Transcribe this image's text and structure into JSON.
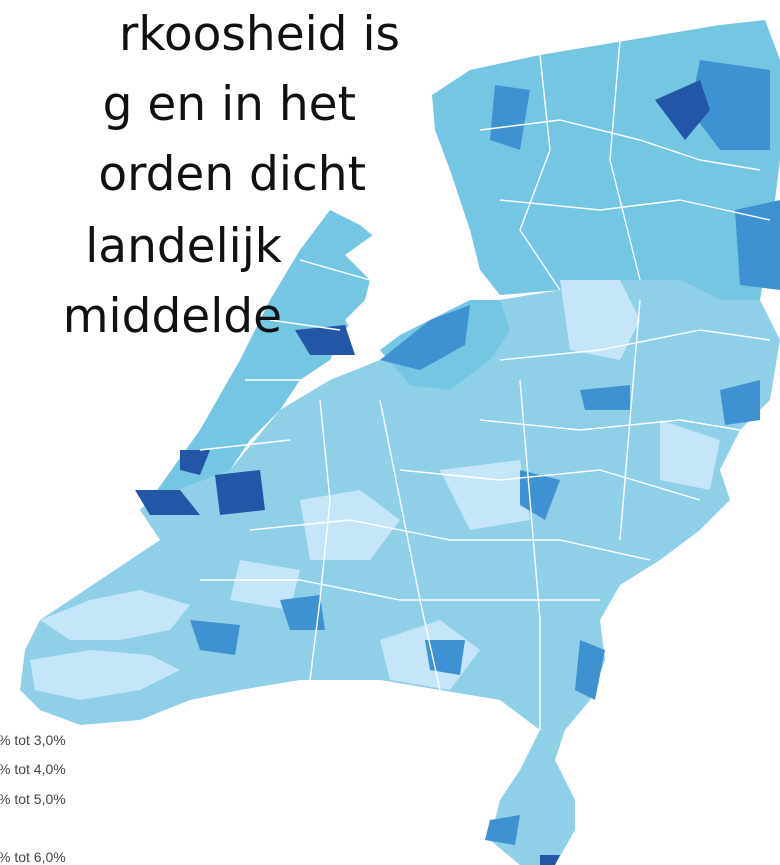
{
  "title_lines": [
    "rkoosheid is",
    "g en in het",
    "orden dicht",
    "landelijk",
    "middelde"
  ],
  "legend": [
    "% tot 3,0%",
    "% tot 4,0%",
    "% tot 5,0%",
    "% tot 6,0%"
  ]
}
